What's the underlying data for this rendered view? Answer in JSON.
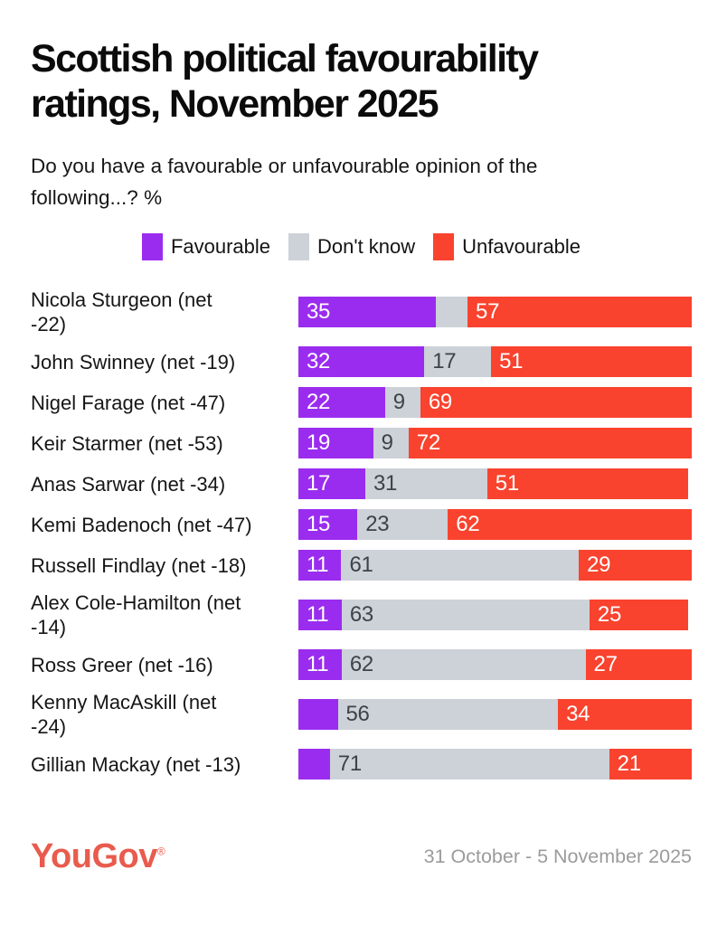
{
  "title": {
    "lines": [
      "Scottish political favourability",
      "ratings, November 2025"
    ]
  },
  "subtitle": {
    "lines": [
      "Do you have a favourable or unfavourable opinion of the",
      "following...? %"
    ]
  },
  "legend": [
    {
      "label": "Favourable",
      "color": "#9a2cef"
    },
    {
      "label": "Don't know",
      "color": "#cdd1d8"
    },
    {
      "label": "Unfavourable",
      "color": "#f9432e"
    }
  ],
  "chart_data": {
    "type": "bar",
    "orientation": "horizontal",
    "stacked": true,
    "unit": "%",
    "xlim": [
      0,
      100
    ],
    "grid": false,
    "legend_position": "top-center",
    "categories": [
      {
        "name": "Nicola Sturgeon",
        "net": -22,
        "label_lines": [
          "Nicola Sturgeon (net",
          "-22)"
        ]
      },
      {
        "name": "John Swinney",
        "net": -19,
        "label_lines": [
          "John Swinney (net -19)"
        ]
      },
      {
        "name": "Nigel Farage",
        "net": -47,
        "label_lines": [
          "Nigel Farage (net -47)"
        ]
      },
      {
        "name": "Keir Starmer",
        "net": -53,
        "label_lines": [
          "Keir Starmer (net -53)"
        ]
      },
      {
        "name": "Anas Sarwar",
        "net": -34,
        "label_lines": [
          "Anas Sarwar (net -34)"
        ]
      },
      {
        "name": "Kemi Badenoch",
        "net": -47,
        "label_lines": [
          "Kemi Badenoch (net -47)"
        ]
      },
      {
        "name": "Russell Findlay",
        "net": -18,
        "label_lines": [
          "Russell Findlay (net -18)"
        ]
      },
      {
        "name": "Alex Cole-Hamilton",
        "net": -14,
        "label_lines": [
          "Alex Cole-Hamilton (net",
          "-14)"
        ]
      },
      {
        "name": "Ross Greer",
        "net": -16,
        "label_lines": [
          "Ross Greer (net -16)"
        ]
      },
      {
        "name": "Kenny MacAskill",
        "net": -24,
        "label_lines": [
          "Kenny MacAskill (net",
          "-24)"
        ]
      },
      {
        "name": "Gillian Mackay",
        "net": -13,
        "label_lines": [
          "Gillian Mackay (net -13)"
        ]
      }
    ],
    "series": [
      {
        "name": "Favourable",
        "color": "#9a2cef",
        "label_color": "#ffffff",
        "values": [
          35,
          32,
          22,
          19,
          17,
          15,
          11,
          11,
          11,
          10,
          8
        ],
        "shown_labels": [
          "35",
          "32",
          "22",
          "19",
          "17",
          "15",
          "11",
          "11",
          "11",
          "",
          ""
        ]
      },
      {
        "name": "Don't know",
        "color": "#cdd1d8",
        "label_color": "#3e4347",
        "values": [
          8,
          17,
          9,
          9,
          31,
          23,
          61,
          63,
          62,
          56,
          71
        ],
        "shown_labels": [
          "",
          "17",
          "9",
          "9",
          "31",
          "23",
          "61",
          "63",
          "62",
          "56",
          "71"
        ]
      },
      {
        "name": "Unfavourable",
        "color": "#f9432e",
        "label_color": "#ffffff",
        "values": [
          57,
          51,
          69,
          72,
          51,
          62,
          29,
          25,
          27,
          34,
          21
        ],
        "shown_labels": [
          "57",
          "51",
          "69",
          "72",
          "51",
          "62",
          "29",
          "25",
          "27",
          "34",
          "21"
        ]
      }
    ]
  },
  "footer": {
    "logo_text": "YouGov",
    "registered_mark": "®",
    "logo_color": "#e95b4d",
    "date_range": "31 October - 5 November 2025"
  }
}
